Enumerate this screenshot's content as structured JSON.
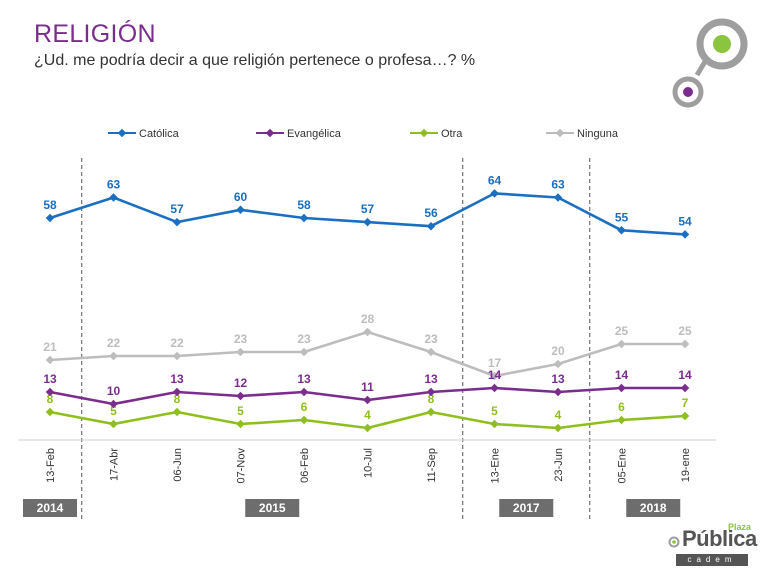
{
  "header": {
    "title": "RELIGIÓN",
    "subtitle": "¿Ud. me podría decir a que religión pertenece o profesa…? %"
  },
  "brand": {
    "plaza": "Plaza",
    "publica": "Pública",
    "cadem": "cadem",
    "colors": {
      "green": "#8bc53f",
      "purple": "#7b2d8e",
      "grey": "#9e9e9e"
    }
  },
  "chart_data": {
    "type": "line",
    "categories": [
      "13-Feb",
      "17-Abr",
      "06-Jun",
      "07-Nov",
      "06-Feb",
      "10-Jul",
      "11-Sep",
      "13-Ene",
      "23-Jun",
      "05-Ene",
      "19-ene"
    ],
    "series": [
      {
        "name": "Católica",
        "color": "#1a6fc2",
        "values": [
          58,
          63,
          57,
          60,
          58,
          57,
          56,
          64,
          63,
          55,
          54
        ]
      },
      {
        "name": "Evangélica",
        "color": "#7b2d8e",
        "values": [
          13,
          10,
          13,
          12,
          13,
          11,
          13,
          14,
          13,
          14,
          14
        ]
      },
      {
        "name": "Otra",
        "color": "#8fbf1f",
        "values": [
          8,
          5,
          8,
          5,
          6,
          4,
          8,
          5,
          4,
          6,
          7
        ]
      },
      {
        "name": "Ninguna",
        "color": "#bdbdbd",
        "values": [
          21,
          22,
          22,
          23,
          23,
          28,
          23,
          17,
          20,
          25,
          25
        ]
      }
    ],
    "year_labels": [
      {
        "label": "2014",
        "start": 0,
        "end": 0
      },
      {
        "label": "2015",
        "start": 1,
        "end": 6
      },
      {
        "label": "2017",
        "start": 7,
        "end": 8
      },
      {
        "label": "2018",
        "start": 9,
        "end": 10
      }
    ],
    "period_dividers_after": [
      0,
      6,
      8
    ],
    "legend_position": "top",
    "grid": false
  }
}
